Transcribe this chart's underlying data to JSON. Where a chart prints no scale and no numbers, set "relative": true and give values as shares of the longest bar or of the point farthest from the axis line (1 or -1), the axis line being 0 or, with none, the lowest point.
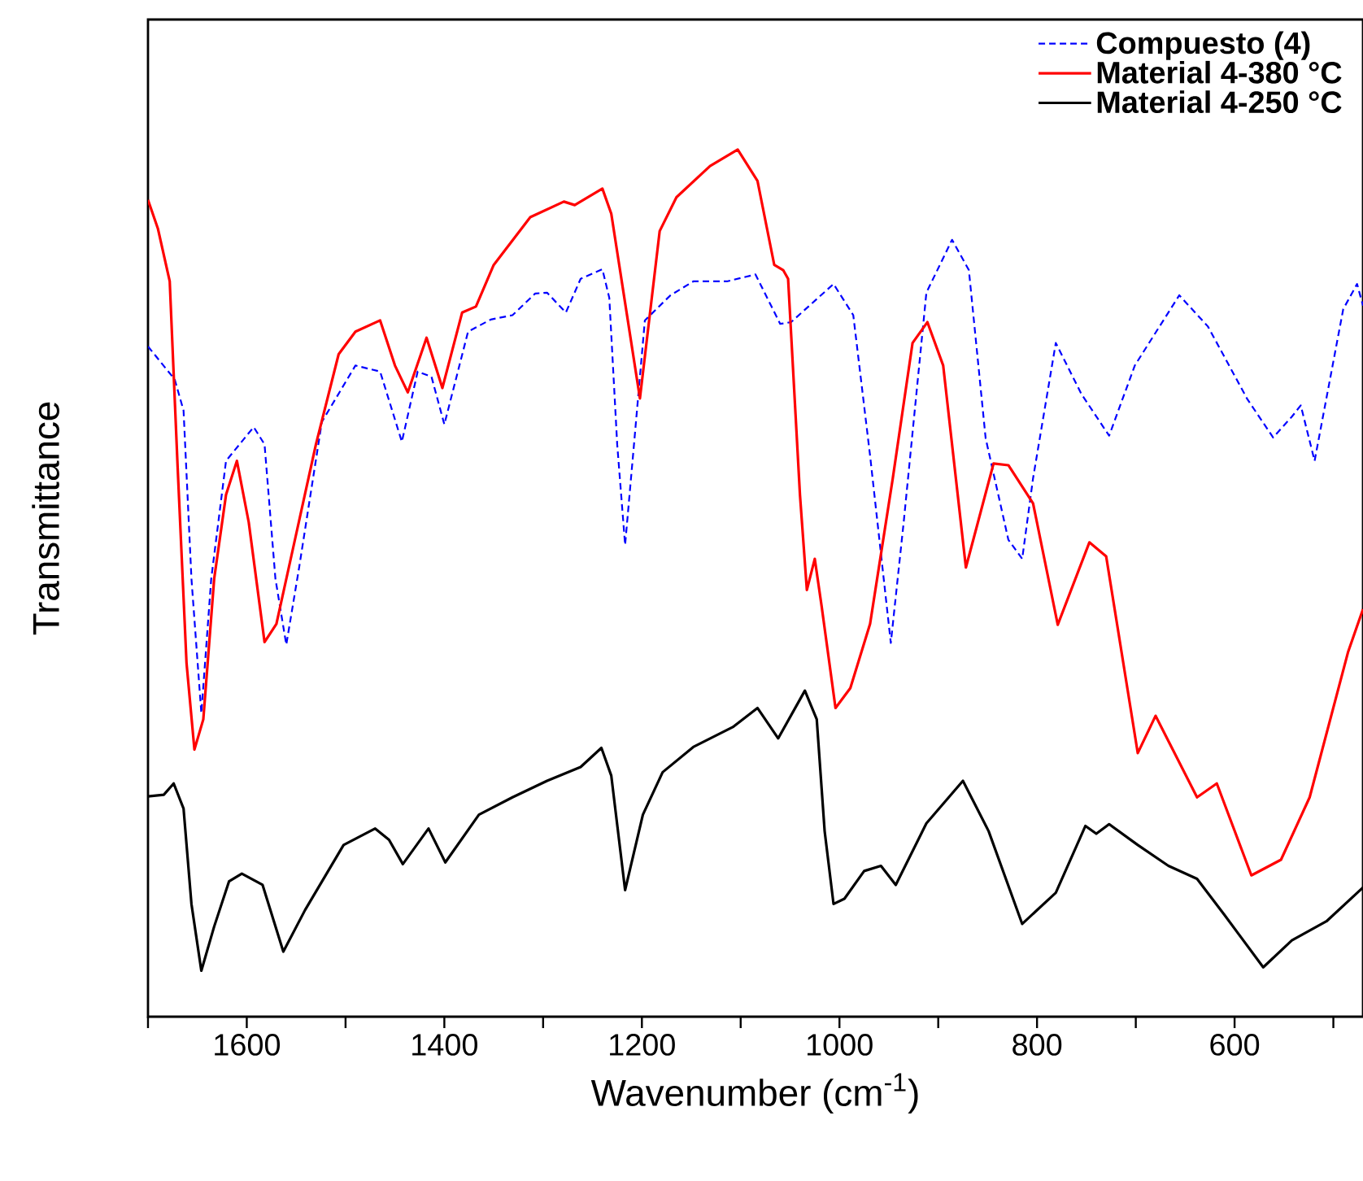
{
  "chart_data": {
    "type": "line",
    "relative": true,
    "xlabel": "Wavenumber (cm$^{-1}$)",
    "ylabel": "Transmittance",
    "xlim": [
      1700,
      470
    ],
    "xticks": [
      {
        "value": 1700,
        "label": null
      },
      1600,
      {
        "value": 1500,
        "label": null
      },
      1400,
      {
        "value": 1300,
        "label": null
      },
      1200,
      {
        "value": 1100,
        "label": null
      },
      1000,
      {
        "value": 900,
        "label": null
      },
      800,
      {
        "value": 700,
        "label": null
      },
      600,
      {
        "value": 500,
        "label": null
      }
    ],
    "legend": "top right",
    "grid": false,
    "tick_labels": "x",
    "series": [
      {
        "name": "Compuesto (4)",
        "color": "#0000ff",
        "line_style": "dashed",
        "x": [
          1700,
          1673,
          1664,
          1656,
          1646,
          1636,
          1621,
          1593,
          1582,
          1571,
          1560,
          1547,
          1524,
          1490,
          1465,
          1443,
          1427,
          1413,
          1400,
          1376,
          1353,
          1331,
          1308,
          1296,
          1277,
          1262,
          1240,
          1233,
          1225,
          1217,
          1208,
          1197,
          1171,
          1148,
          1114,
          1085,
          1060,
          1049,
          1006,
          986,
          969,
          948,
          935,
          912,
          886,
          869,
          852,
          829,
          815,
          804,
          781,
          755,
          727,
          701,
          656,
          627,
          587,
          561,
          542,
          533,
          519,
          490,
          476,
          470
        ],
        "values": [
          0.773,
          0.735,
          0.699,
          0.505,
          0.35,
          0.505,
          0.641,
          0.68,
          0.66,
          0.505,
          0.429,
          0.518,
          0.686,
          0.751,
          0.744,
          0.663,
          0.744,
          0.738,
          0.683,
          0.79,
          0.804,
          0.809,
          0.834,
          0.835,
          0.812,
          0.851,
          0.862,
          0.829,
          0.66,
          0.544,
          0.66,
          0.803,
          0.832,
          0.848,
          0.848,
          0.856,
          0.799,
          0.801,
          0.845,
          0.809,
          0.647,
          0.431,
          0.57,
          0.835,
          0.896,
          0.861,
          0.667,
          0.55,
          0.528,
          0.621,
          0.777,
          0.718,
          0.67,
          0.751,
          0.832,
          0.796,
          0.712,
          0.668,
          0.692,
          0.705,
          0.641,
          0.816,
          0.845,
          0.82
        ]
      },
      {
        "name": "Material 4-380 °C",
        "color": "#ff0000",
        "line_style": "solid",
        "x": [
          1700,
          1690,
          1678,
          1670,
          1661,
          1653,
          1644,
          1633,
          1621,
          1610,
          1598,
          1582,
          1570,
          1553,
          1530,
          1507,
          1490,
          1465,
          1450,
          1437,
          1418,
          1402,
          1382,
          1368,
          1350,
          1313,
          1279,
          1268,
          1240,
          1231,
          1202,
          1182,
          1165,
          1131,
          1103,
          1083,
          1066,
          1057,
          1052,
          1040,
          1033,
          1025,
          1018,
          1004,
          989,
          969,
          946,
          926,
          911,
          895,
          872,
          844,
          829,
          804,
          779,
          747,
          730,
          698,
          680,
          638,
          618,
          583,
          553,
          524,
          485,
          470
        ],
        "values": [
          0.942,
          0.909,
          0.848,
          0.634,
          0.408,
          0.308,
          0.343,
          0.505,
          0.602,
          0.641,
          0.57,
          0.432,
          0.453,
          0.541,
          0.66,
          0.764,
          0.79,
          0.803,
          0.751,
          0.72,
          0.783,
          0.725,
          0.812,
          0.819,
          0.867,
          0.922,
          0.94,
          0.936,
          0.955,
          0.926,
          0.713,
          0.906,
          0.945,
          0.981,
          1,
          0.964,
          0.867,
          0.861,
          0.851,
          0.602,
          0.492,
          0.528,
          0.473,
          0.356,
          0.379,
          0.453,
          0.621,
          0.777,
          0.801,
          0.751,
          0.518,
          0.638,
          0.636,
          0.592,
          0.452,
          0.547,
          0.531,
          0.304,
          0.347,
          0.253,
          0.269,
          0.163,
          0.181,
          0.253,
          0.421,
          0.47
        ]
      },
      {
        "name": "Material 4-250 °C",
        "color": "#000000",
        "line_style": "solid",
        "x": [
          1700,
          1684,
          1674,
          1664,
          1656,
          1646,
          1633,
          1618,
          1605,
          1584,
          1563,
          1541,
          1502,
          1470,
          1456,
          1442,
          1416,
          1399,
          1365,
          1331,
          1296,
          1262,
          1241,
          1231,
          1217,
          1199,
          1179,
          1148,
          1108,
          1083,
          1062,
          1035,
          1023,
          1015,
          1006,
          995,
          975,
          958,
          943,
          912,
          875,
          849,
          815,
          781,
          751,
          740,
          727,
          698,
          667,
          638,
          610,
          571,
          542,
          507,
          470
        ],
        "values": [
          0.254,
          0.256,
          0.269,
          0.24,
          0.13,
          0.053,
          0.104,
          0.156,
          0.165,
          0.152,
          0.075,
          0.123,
          0.198,
          0.217,
          0.204,
          0.176,
          0.217,
          0.178,
          0.233,
          0.253,
          0.272,
          0.288,
          0.31,
          0.278,
          0.146,
          0.233,
          0.282,
          0.311,
          0.334,
          0.356,
          0.321,
          0.376,
          0.343,
          0.214,
          0.13,
          0.136,
          0.168,
          0.174,
          0.152,
          0.223,
          0.272,
          0.214,
          0.107,
          0.143,
          0.22,
          0.211,
          0.222,
          0.198,
          0.174,
          0.159,
          0.117,
          0.057,
          0.088,
          0.11,
          0.149
        ]
      }
    ]
  }
}
